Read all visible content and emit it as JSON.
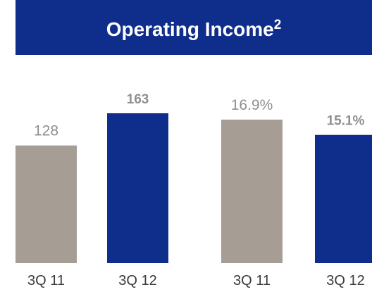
{
  "title": {
    "text": "Operating Income",
    "superscript": "2"
  },
  "colors": {
    "title_background": "#0f2d8a",
    "prior_period": "#a69d95",
    "current_period": "#0f2d8a",
    "prior_label": "#8f8f8f",
    "current_label": "#8f8f8f"
  },
  "chart_data": [
    {
      "type": "bar",
      "categories": [
        "3Q 11",
        "3Q 12"
      ],
      "values": [
        128,
        163
      ],
      "value_labels": [
        "128",
        "163"
      ],
      "ylim": [
        0,
        163
      ]
    },
    {
      "type": "bar",
      "categories": [
        "3Q 11",
        "3Q 12"
      ],
      "values": [
        16.9,
        15.1
      ],
      "value_labels": [
        "16.9%",
        "15.1%"
      ],
      "ylim": [
        0,
        16.9
      ]
    }
  ]
}
